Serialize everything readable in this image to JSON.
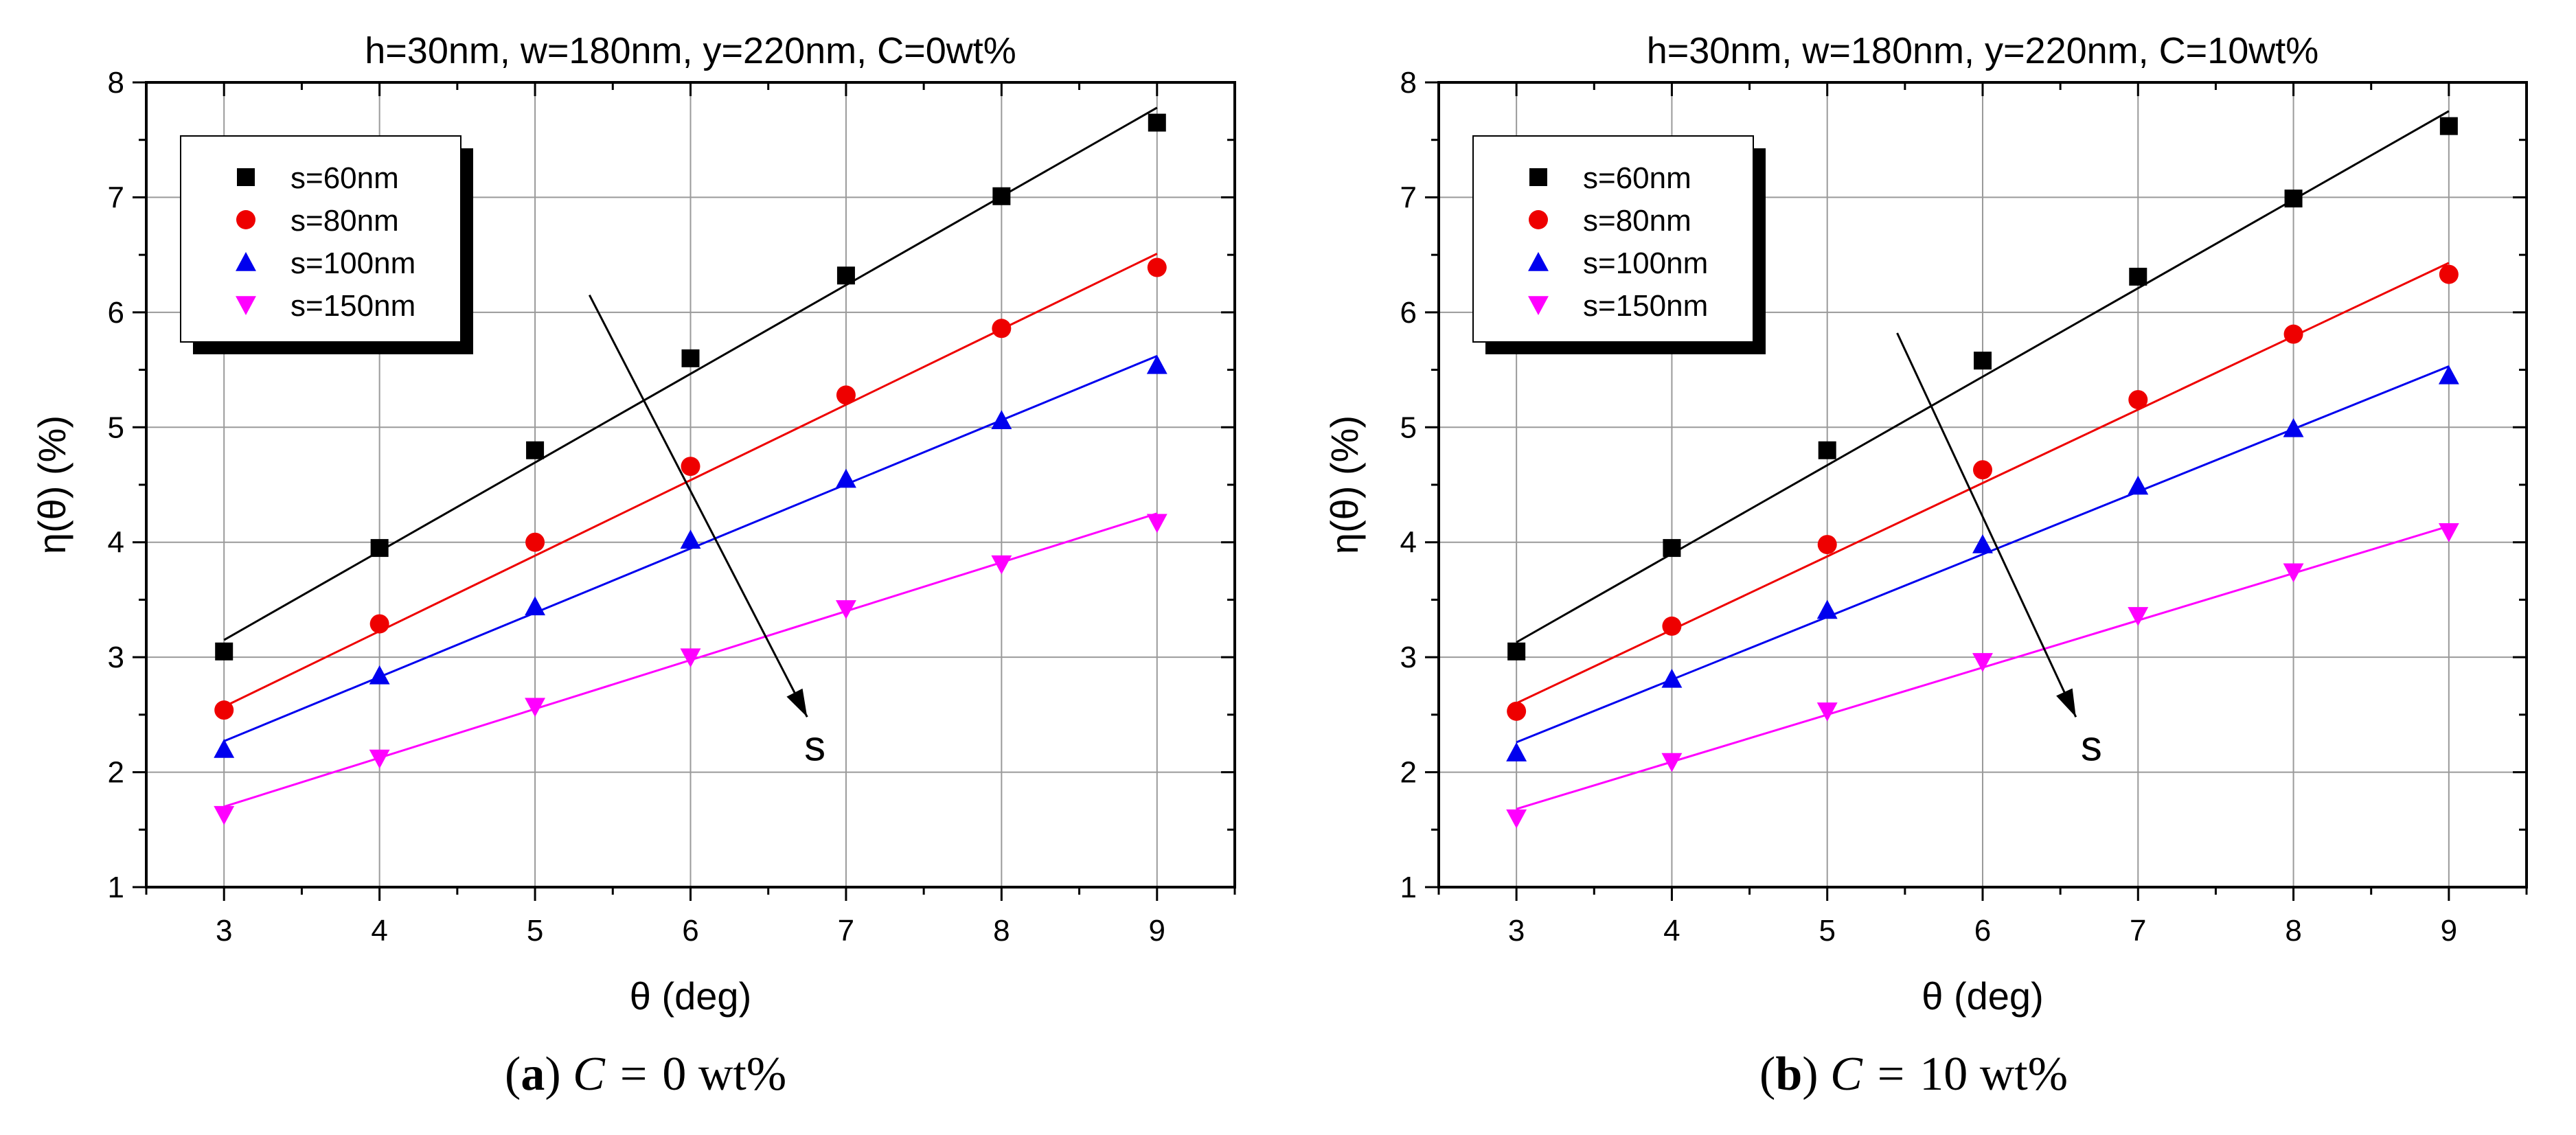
{
  "figure": {
    "captions": [
      {
        "label": "a",
        "var": "C",
        "eq": "=",
        "value": "0",
        "unit": "wt%"
      },
      {
        "label": "b",
        "var": "C",
        "eq": "=",
        "value": "10",
        "unit": "wt%"
      }
    ]
  },
  "chart_data": [
    {
      "type": "scatter",
      "title": "h=30nm, w=180nm, y=220nm, C=0wt%",
      "xlabel": "θ (deg)",
      "ylabel": "η(θ) (%)",
      "xlim": [
        2.5,
        9.5
      ],
      "ylim": [
        1,
        8
      ],
      "xticks": [
        3,
        4,
        5,
        6,
        7,
        8,
        9
      ],
      "yticks": [
        1,
        2,
        3,
        4,
        5,
        6,
        7,
        8
      ],
      "grid": true,
      "legend_position": "top-left",
      "x": [
        3,
        4,
        5,
        6,
        7,
        8,
        9
      ],
      "series": [
        {
          "name": "s=60nm",
          "marker": "square",
          "color": "#000000",
          "values": [
            3.05,
            3.95,
            4.8,
            5.6,
            6.32,
            7.01,
            7.65
          ],
          "fit": [
            3.15,
            7.78
          ]
        },
        {
          "name": "s=80nm",
          "marker": "circle",
          "color": "#ee0000",
          "values": [
            2.54,
            3.29,
            4.0,
            4.66,
            5.28,
            5.86,
            6.39
          ],
          "fit": [
            2.57,
            6.51
          ]
        },
        {
          "name": "s=100nm",
          "marker": "triangle-up",
          "color": "#0000ee",
          "values": [
            2.2,
            2.84,
            3.44,
            4.02,
            4.55,
            5.06,
            5.54
          ],
          "fit": [
            2.27,
            5.62
          ]
        },
        {
          "name": "s=150nm",
          "marker": "triangle-down",
          "color": "#ff00ff",
          "values": [
            1.63,
            2.12,
            2.57,
            3.0,
            3.42,
            3.81,
            4.17
          ],
          "fit": [
            1.7,
            4.25
          ]
        }
      ],
      "annotation": {
        "text": "s",
        "arrow_from": [
          5.35,
          6.15
        ],
        "arrow_to": [
          6.75,
          2.48
        ],
        "text_at": [
          6.8,
          2.22
        ]
      }
    },
    {
      "type": "scatter",
      "title": "h=30nm, w=180nm, y=220nm, C=10wt%",
      "xlabel": "θ (deg)",
      "ylabel": "η(θ) (%)",
      "xlim": [
        2.5,
        9.5
      ],
      "ylim": [
        1,
        8
      ],
      "xticks": [
        3,
        4,
        5,
        6,
        7,
        8,
        9
      ],
      "yticks": [
        1,
        2,
        3,
        4,
        5,
        6,
        7,
        8
      ],
      "grid": true,
      "legend_position": "top-left",
      "x": [
        3,
        4,
        5,
        6,
        7,
        8,
        9
      ],
      "series": [
        {
          "name": "s=60nm",
          "marker": "square",
          "color": "#000000",
          "values": [
            3.05,
            3.95,
            4.8,
            5.58,
            6.31,
            6.99,
            7.62
          ],
          "fit": [
            3.13,
            7.75
          ]
        },
        {
          "name": "s=80nm",
          "marker": "circle",
          "color": "#ee0000",
          "values": [
            2.53,
            3.27,
            3.98,
            4.63,
            5.24,
            5.81,
            6.33
          ],
          "fit": [
            2.6,
            6.43
          ]
        },
        {
          "name": "s=100nm",
          "marker": "triangle-up",
          "color": "#0000ee",
          "values": [
            2.17,
            2.81,
            3.41,
            3.98,
            4.49,
            4.99,
            5.45
          ],
          "fit": [
            2.26,
            5.53
          ]
        },
        {
          "name": "s=150nm",
          "marker": "triangle-down",
          "color": "#ff00ff",
          "values": [
            1.6,
            2.09,
            2.53,
            2.96,
            3.36,
            3.74,
            4.09
          ],
          "fit": [
            1.68,
            4.14
          ]
        }
      ],
      "annotation": {
        "text": "s",
        "arrow_from": [
          5.45,
          5.82
        ],
        "arrow_to": [
          6.6,
          2.48
        ],
        "text_at": [
          6.7,
          2.22
        ]
      }
    }
  ]
}
